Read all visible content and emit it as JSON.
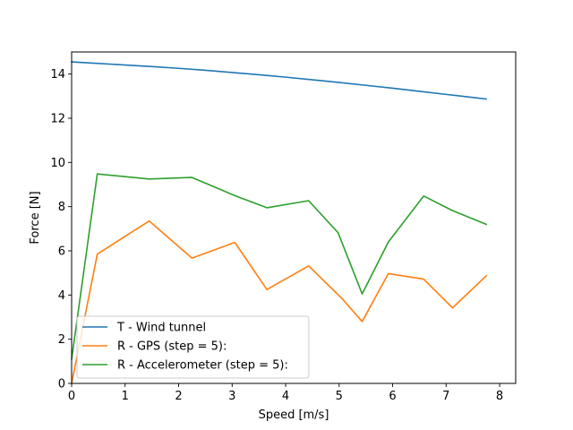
{
  "chart_data": {
    "type": "line",
    "title": "",
    "xlabel": "Speed [m/s]",
    "ylabel": "Force [N]",
    "xlim": [
      0,
      8.3
    ],
    "ylim": [
      0,
      15
    ],
    "xticks": [
      0,
      1,
      2,
      3,
      4,
      5,
      6,
      7,
      8
    ],
    "yticks": [
      0,
      2,
      4,
      6,
      8,
      10,
      12,
      14
    ],
    "grid": false,
    "legend_position": "lower-left",
    "series": [
      {
        "name": "T - Wind tunnel",
        "color": "#1f77b4",
        "x": [
          0.0,
          0.5,
          1.0,
          1.5,
          2.0,
          2.5,
          3.0,
          3.5,
          4.0,
          4.5,
          5.0,
          5.5,
          6.0,
          6.5,
          7.0,
          7.5,
          7.75
        ],
        "y": [
          14.55,
          14.48,
          14.41,
          14.34,
          14.26,
          14.17,
          14.07,
          13.97,
          13.86,
          13.74,
          13.62,
          13.49,
          13.36,
          13.22,
          13.08,
          12.94,
          12.87
        ]
      },
      {
        "name": "R - GPS (step = 5):",
        "color": "#ff7f0e",
        "x": [
          0.0,
          0.48,
          1.45,
          2.25,
          3.05,
          3.65,
          4.43,
          5.05,
          5.43,
          5.92,
          6.58,
          7.12,
          7.75
        ],
        "y": [
          0.0,
          5.85,
          7.35,
          5.67,
          6.38,
          4.25,
          5.32,
          3.85,
          2.8,
          4.97,
          4.72,
          3.42,
          4.87
        ]
      },
      {
        "name": "R - Accelerometer (step = 5):",
        "color": "#2ca02c",
        "x": [
          0.0,
          0.48,
          1.45,
          2.25,
          3.05,
          3.65,
          4.43,
          4.98,
          5.43,
          5.92,
          6.58,
          7.12,
          7.75
        ],
        "y": [
          1.1,
          9.48,
          9.25,
          9.32,
          8.5,
          7.95,
          8.27,
          6.82,
          4.05,
          6.4,
          8.48,
          7.82,
          7.2
        ]
      }
    ]
  }
}
